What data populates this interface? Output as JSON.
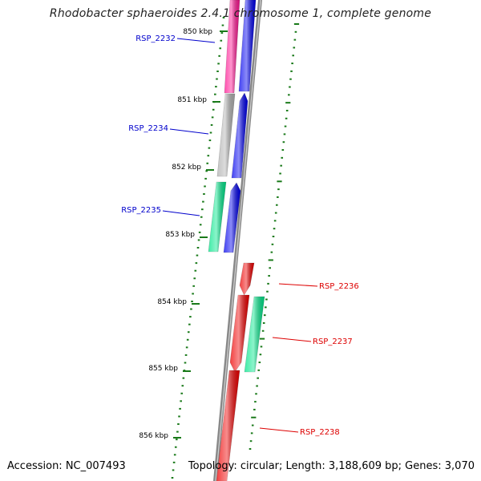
{
  "title": "Rhodobacter sphaeroides 2.4.1 chromosome 1, complete genome",
  "footer": {
    "accession": "Accession: NC_007493",
    "summary": "Topology: circular; Length: 3,188,609 bp; Genes: 3,070"
  },
  "colors": {
    "backbone": "#888888",
    "tick": "#1a7a1a",
    "label_plus": "#0000cc",
    "label_minus": "#dd0000"
  },
  "ticks": [
    {
      "label": "850 kbp"
    },
    {
      "label": "851 kbp"
    },
    {
      "label": "852 kbp"
    },
    {
      "label": "853 kbp"
    },
    {
      "label": "854 kbp"
    },
    {
      "label": "855 kbp"
    },
    {
      "label": "856 kbp"
    }
  ],
  "genes": [
    {
      "name": "RSP_2232",
      "strand": "+",
      "color": "#ff1493"
    },
    {
      "name": "RSP_2232",
      "strand": "+",
      "color": "#0000ee"
    },
    {
      "name": "RSP_2234",
      "strand": "+",
      "color": "#b0b0b0"
    },
    {
      "name": "RSP_2234",
      "strand": "+",
      "color": "#0000ee"
    },
    {
      "name": "RSP_2235",
      "strand": "+",
      "color": "#00e68a"
    },
    {
      "name": "RSP_2235",
      "strand": "+",
      "color": "#0000ee"
    },
    {
      "name": "RSP_2236",
      "strand": "-",
      "color": "#ee0000"
    },
    {
      "name": "RSP_2237",
      "strand": "-",
      "color": "#ee0000"
    },
    {
      "name": "RSP_2237",
      "strand": "-",
      "color": "#00e68a"
    },
    {
      "name": "RSP_2238",
      "strand": "-",
      "color": "#ee0000"
    }
  ],
  "gene_labels": [
    {
      "text": "RSP_2232",
      "strand": "+"
    },
    {
      "text": "RSP_2234",
      "strand": "+"
    },
    {
      "text": "RSP_2235",
      "strand": "+"
    },
    {
      "text": "RSP_2236",
      "strand": "-"
    },
    {
      "text": "RSP_2237",
      "strand": "-"
    },
    {
      "text": "RSP_2238",
      "strand": "-"
    }
  ]
}
